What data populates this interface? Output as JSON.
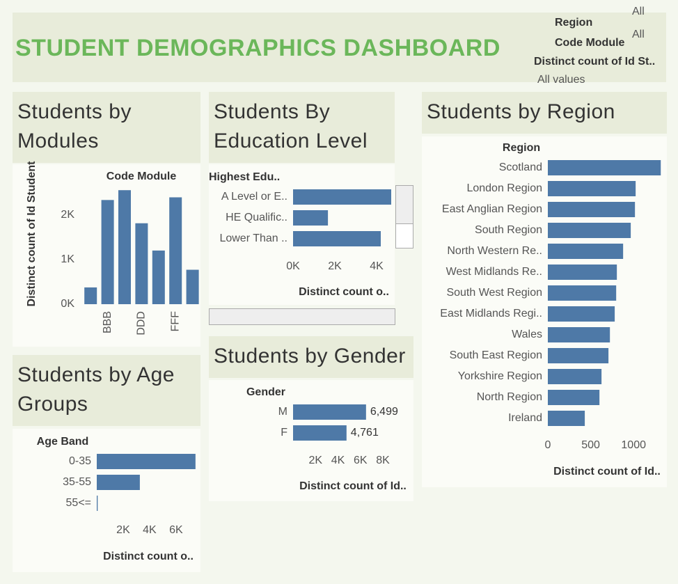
{
  "header": {
    "title": "STUDENT DEMOGRAPHICS DASHBOARD",
    "filters": [
      {
        "label": "Region",
        "value": "All"
      },
      {
        "label": "Code Module",
        "value": "All"
      },
      {
        "label": "Distinct count of Id St..",
        "value": "All values"
      }
    ]
  },
  "chart_data": [
    {
      "type": "bar",
      "orientation": "vertical",
      "title": "Students by Modules",
      "category_header": "Code Module",
      "ylabel": "Distinct count of Id Student",
      "categories": [
        null,
        "BBB",
        null,
        "DDD",
        null,
        "FFF",
        null
      ],
      "values": [
        375,
        2330,
        2550,
        1810,
        1200,
        2390,
        770
      ],
      "color": "#4e79a7",
      "ylim": [
        0,
        2600
      ],
      "yticks": [
        {
          "value": 0,
          "label": "0K"
        },
        {
          "value": 1000,
          "label": "1K"
        },
        {
          "value": 2000,
          "label": "2K"
        }
      ]
    },
    {
      "type": "bar",
      "orientation": "horizontal",
      "title": "Students By Education Level",
      "category_header": "Highest Edu..",
      "xlabel": "Distinct count o..",
      "categories": [
        "A Level or E..",
        "HE Qualific..",
        "Lower Than .."
      ],
      "values": [
        4700,
        1670,
        4200
      ],
      "color": "#4e79a7",
      "xlim": [
        0,
        4800
      ],
      "xticks": [
        {
          "value": 0,
          "label": "0K"
        },
        {
          "value": 2000,
          "label": "2K"
        },
        {
          "value": 4000,
          "label": "4K"
        }
      ]
    },
    {
      "type": "bar",
      "orientation": "horizontal",
      "title": "Students by Gender",
      "category_header": "Gender",
      "xlabel": "Distinct count of Id..",
      "categories": [
        "M",
        "F"
      ],
      "values": [
        6499,
        4761
      ],
      "value_labels": [
        "6,499",
        "4,761"
      ],
      "color": "#4e79a7",
      "xlim": [
        0,
        10600
      ],
      "xticks": [
        {
          "value": 2000,
          "label": "2K"
        },
        {
          "value": 4000,
          "label": "4K"
        },
        {
          "value": 6000,
          "label": "6K"
        },
        {
          "value": 8000,
          "label": "8K"
        }
      ]
    },
    {
      "type": "bar",
      "orientation": "horizontal",
      "title": "Students by Age Groups",
      "category_header": "Age Band",
      "xlabel": "Distinct count o..",
      "categories": [
        "0-35",
        "35-55",
        "55<="
      ],
      "values": [
        7470,
        3260,
        70
      ],
      "color": "#4e79a7",
      "xlim": [
        0,
        7900
      ],
      "xticks": [
        {
          "value": 2000,
          "label": "2K"
        },
        {
          "value": 4000,
          "label": "4K"
        },
        {
          "value": 6000,
          "label": "6K"
        }
      ]
    },
    {
      "type": "bar",
      "orientation": "horizontal",
      "title": "Students by Region",
      "category_header": "Region",
      "xlabel": "Distinct count of Id..",
      "categories": [
        "Scotland",
        "London Region",
        "East Anglian Region",
        "South Region",
        "North Western Re..",
        "West Midlands Re..",
        "South West Region",
        "East Midlands Regi..",
        "Wales",
        "South East Region",
        "Yorkshire Region",
        "North Region",
        "Ireland"
      ],
      "values": [
        1317,
        1024,
        1016,
        967,
        878,
        805,
        797,
        780,
        724,
        707,
        626,
        602,
        431
      ],
      "color": "#4e79a7",
      "xlim": [
        0,
        1380
      ],
      "xticks": [
        0,
        500,
        1000
      ]
    }
  ]
}
